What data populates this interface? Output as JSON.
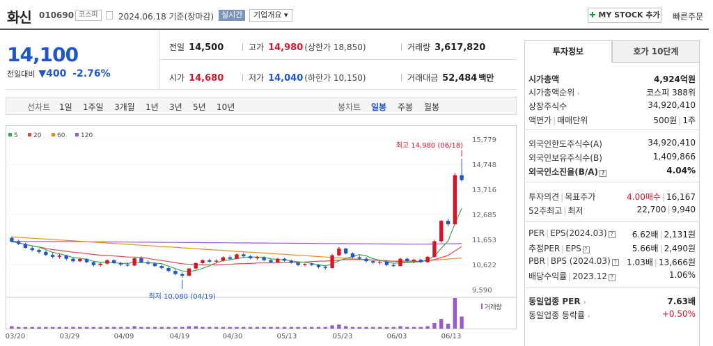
{
  "header": {
    "name": "화신",
    "code": "010690",
    "market": "코스피",
    "date": "2024.06.18 기준(장마감)",
    "realtime": "실시간",
    "corp_overview": "기업개요 ▾",
    "mystock": "MY STOCK 추가",
    "quick_order": "빠른주문"
  },
  "price": {
    "current": "14,100",
    "change_label": "전일대비",
    "change": "▼400",
    "change_pct": "-2.76%"
  },
  "quote": {
    "prev_label": "전일",
    "prev": "14,500",
    "high_label": "고가",
    "high": "14,980",
    "upper_limit": "(상한가 18,850)",
    "volume_label": "거래량",
    "volume": "3,617,820",
    "open_label": "시가",
    "open": "14,680",
    "low_label": "저가",
    "low": "14,040",
    "lower_limit": "(하한가 10,150)",
    "amount_label": "거래대금",
    "amount": "52,484",
    "amount_unit": "백만"
  },
  "toolbar": {
    "line_chart": "선차트",
    "periods": [
      "1일",
      "1주일",
      "3개월",
      "1년",
      "3년",
      "5년",
      "10년"
    ],
    "candle": "봉차트",
    "candle_periods": [
      "일봉",
      "주봉",
      "월봉"
    ],
    "selected_candle": "일봉"
  },
  "tabs": {
    "invest": "투자정보",
    "hoga": "호가 10단계"
  },
  "info": {
    "mktcap_l": "시가총액",
    "mktcap_r": "4,924억원",
    "rank_l": "시가총액순위",
    "rank_r": "코스피 388위",
    "shares_l": "상장주식수",
    "shares_r": "34,920,410",
    "par_l1": "액면가",
    "par_l2": "매매단위",
    "par_r1": "500원",
    "par_r2": "1주",
    "fl_l": "외국인한도주식수(A)",
    "fl_r": "34,920,410",
    "fh_l": "외국인보유주식수(B)",
    "fh_r": "1,409,866",
    "fr_l": "외국인소진율(B/A)",
    "fr_r": "4.04%",
    "op_l1": "투자의견",
    "op_l2": "목표주가",
    "op_r1": "4.00매수",
    "op_r2": "16,167",
    "w52_l1": "52주최고",
    "w52_l2": "최저",
    "w52_r1": "22,700",
    "w52_r2": "9,940",
    "per_l1": "PER",
    "per_l2": "EPS(2024.03)",
    "per_r1": "6.62배",
    "per_r2": "2,131원",
    "eper_l1": "추정PER",
    "eper_l2": "EPS",
    "eper_r1": "5.66배",
    "eper_r2": "2,490원",
    "pbr_l1": "PBR",
    "pbr_l2": "BPS (2024.03)",
    "pbr_r1": "1.03배",
    "pbr_r2": "13,666원",
    "div_l1": "배당수익률",
    "div_l2": "2023.12",
    "div_r": "1.06%",
    "sper_l": "동일업종 PER",
    "sper_r": "7.63배",
    "srate_l": "동일업종 등락률",
    "srate_r": "+0.50%"
  },
  "chart_data": {
    "type": "candlestick",
    "legend": [
      "5",
      "20",
      "60",
      "120"
    ],
    "legend_colors": [
      "#3aa845",
      "#e0464f",
      "#ee8a1b",
      "#9b59d0"
    ],
    "y_ticks": [
      15779,
      14748,
      13716,
      12685,
      11653,
      10622,
      9590
    ],
    "ylim": [
      9590,
      15779
    ],
    "x_ticks": [
      "03/20",
      "03/29",
      "04/09",
      "04/19",
      "04/30",
      "05/13",
      "05/23",
      "06/03",
      "06/13"
    ],
    "max_label": "최고 14,980 (06/18)",
    "min_label": "최저 10,080 (04/19)",
    "volume_label": "거래량",
    "up_color": "#d7142a",
    "down_color": "#1f56c8",
    "candles": [
      [
        11720,
        11780,
        11530,
        11560
      ],
      [
        11560,
        11640,
        11420,
        11470
      ],
      [
        11470,
        11520,
        11280,
        11310
      ],
      [
        11300,
        11380,
        11160,
        11220
      ],
      [
        11220,
        11280,
        11080,
        11140
      ],
      [
        11140,
        11200,
        10960,
        11020
      ],
      [
        11020,
        11100,
        10880,
        10940
      ],
      [
        10940,
        11050,
        10860,
        10990
      ],
      [
        10990,
        11030,
        10800,
        10860
      ],
      [
        10860,
        10920,
        10700,
        10760
      ],
      [
        10760,
        10900,
        10720,
        10850
      ],
      [
        10850,
        10880,
        10680,
        10720
      ],
      [
        10720,
        10760,
        10540,
        10600
      ],
      [
        10600,
        10700,
        10540,
        10660
      ],
      [
        10660,
        10840,
        10620,
        10800
      ],
      [
        10800,
        10840,
        10640,
        10680
      ],
      [
        10680,
        10740,
        10560,
        10620
      ],
      [
        10620,
        10700,
        10540,
        10580
      ],
      [
        10580,
        10900,
        10560,
        10880
      ],
      [
        10880,
        10960,
        10700,
        10720
      ],
      [
        10720,
        10800,
        10620,
        10660
      ],
      [
        10660,
        10720,
        10520,
        10560
      ],
      [
        10560,
        10620,
        10420,
        10480
      ],
      [
        10480,
        10520,
        10300,
        10360
      ],
      [
        10360,
        10420,
        10180,
        10230
      ],
      [
        10230,
        10300,
        10080,
        10160
      ],
      [
        10160,
        10480,
        10140,
        10460
      ],
      [
        10460,
        10720,
        10420,
        10680
      ],
      [
        10680,
        10840,
        10620,
        10800
      ],
      [
        10800,
        10860,
        10700,
        10740
      ],
      [
        10740,
        10840,
        10680,
        10780
      ],
      [
        10780,
        10960,
        10740,
        10920
      ],
      [
        10920,
        11000,
        10800,
        10860
      ],
      [
        10860,
        11080,
        10840,
        11040
      ],
      [
        11040,
        11120,
        10920,
        10960
      ],
      [
        10960,
        11020,
        10840,
        10880
      ],
      [
        10880,
        10980,
        10820,
        10920
      ],
      [
        10920,
        10960,
        10760,
        10800
      ],
      [
        10800,
        10860,
        10680,
        10720
      ],
      [
        10720,
        10900,
        10700,
        10860
      ],
      [
        10860,
        10900,
        10740,
        10780
      ],
      [
        10780,
        10820,
        10660,
        10700
      ],
      [
        10700,
        10740,
        10560,
        10600
      ],
      [
        10600,
        10680,
        10540,
        10640
      ],
      [
        10640,
        10700,
        10560,
        10600
      ],
      [
        10600,
        10640,
        10460,
        10520
      ],
      [
        10520,
        10580,
        10420,
        10480
      ],
      [
        10480,
        11060,
        10460,
        11000
      ],
      [
        11000,
        11340,
        10960,
        11280
      ],
      [
        11280,
        11300,
        11040,
        11080
      ],
      [
        11080,
        11120,
        10880,
        10920
      ],
      [
        10920,
        11000,
        10820,
        10860
      ],
      [
        10860,
        10940,
        10700,
        10760
      ],
      [
        10760,
        10820,
        10640,
        10700
      ],
      [
        10700,
        10780,
        10620,
        10740
      ],
      [
        10740,
        10780,
        10560,
        10600
      ],
      [
        10600,
        10660,
        10520,
        10560
      ],
      [
        10560,
        10900,
        10540,
        10860
      ],
      [
        10860,
        10920,
        10700,
        10760
      ],
      [
        10760,
        10860,
        10680,
        10820
      ],
      [
        10820,
        10860,
        10680,
        10720
      ],
      [
        10720,
        10980,
        10700,
        10940
      ],
      [
        10940,
        11640,
        10900,
        11580
      ],
      [
        11580,
        12460,
        11520,
        12420
      ],
      [
        12420,
        12500,
        12200,
        12280
      ],
      [
        12280,
        14400,
        12260,
        14300
      ],
      [
        14300,
        14980,
        14040,
        14100
      ]
    ],
    "volumes": [
      3,
      2,
      2,
      2,
      2,
      2,
      2,
      2,
      2,
      2,
      2,
      2,
      2,
      2,
      2,
      2,
      2,
      2,
      3,
      2,
      2,
      2,
      2,
      2,
      2,
      2,
      3,
      3,
      2,
      2,
      2,
      2,
      2,
      2,
      2,
      2,
      2,
      2,
      2,
      2,
      2,
      2,
      2,
      2,
      2,
      2,
      2,
      4,
      5,
      3,
      2,
      2,
      2,
      2,
      2,
      2,
      2,
      3,
      2,
      2,
      2,
      3,
      7,
      12,
      6,
      38,
      15
    ]
  }
}
